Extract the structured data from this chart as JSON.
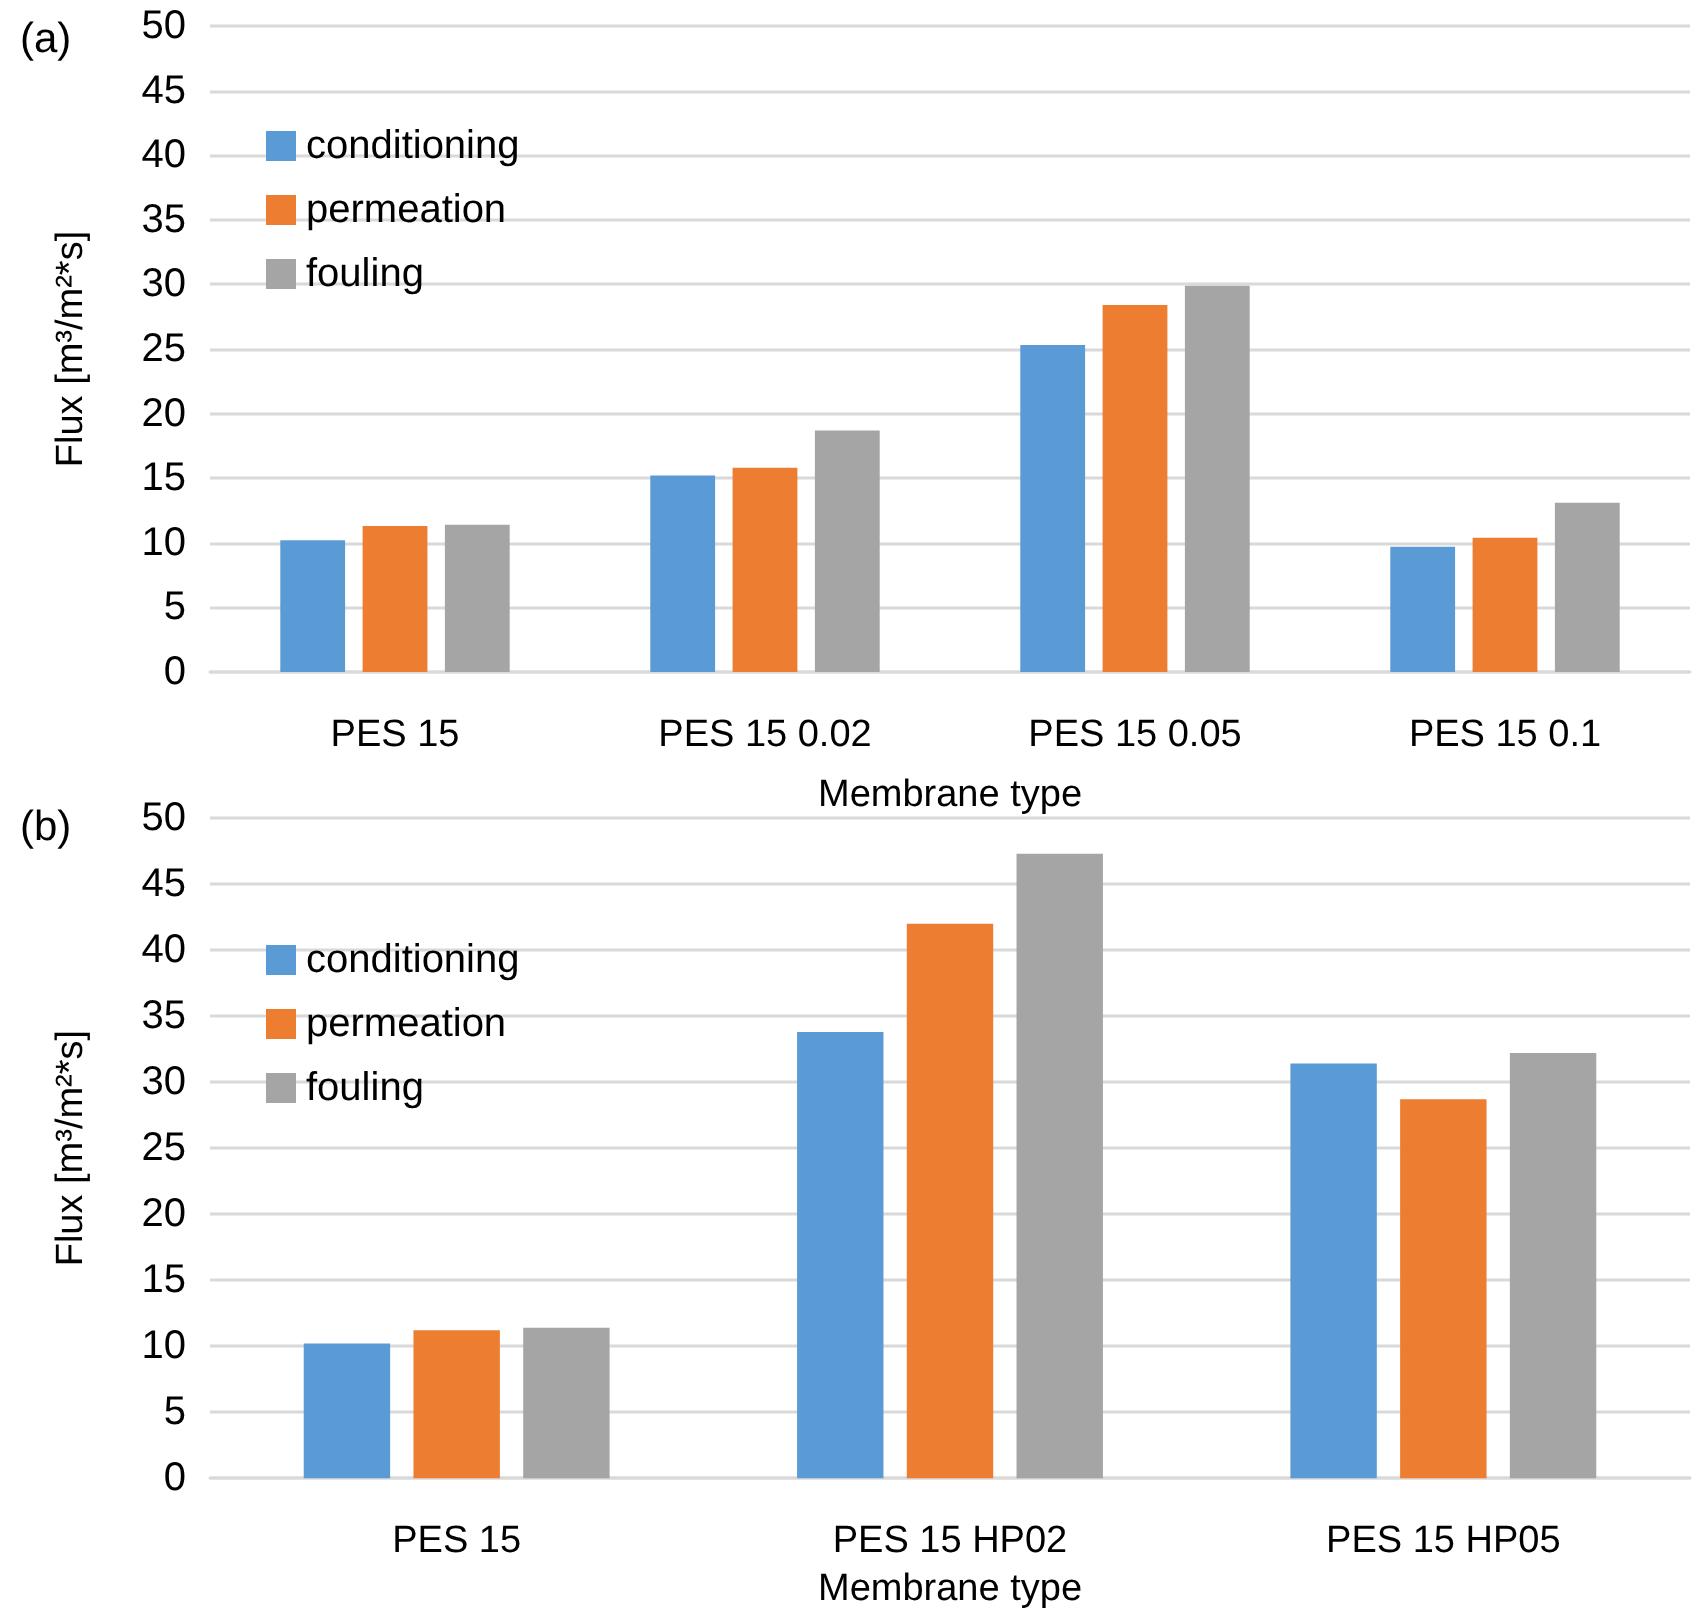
{
  "chart_data": [
    {
      "type": "bar",
      "annotations": [
        "(a)"
      ],
      "xlabel": "Membrane type",
      "ylabel": "Flux [m³/m²*s]",
      "categories": [
        "PES 15",
        "PES 15 0.02",
        "PES 15 0.05",
        "PES 15 0.1"
      ],
      "series": [
        {
          "name": "conditioning",
          "color": "#5b9bd5",
          "values": [
            10.2,
            15.2,
            25.3,
            9.7
          ]
        },
        {
          "name": "permeation",
          "color": "#ed7d31",
          "values": [
            11.3,
            15.8,
            28.4,
            10.4
          ]
        },
        {
          "name": "fouling",
          "color": "#a5a5a5",
          "values": [
            11.4,
            18.7,
            29.9,
            13.1
          ]
        }
      ],
      "ylim": [
        0,
        50
      ],
      "yticks": [
        0,
        5,
        10,
        15,
        20,
        25,
        30,
        35,
        40,
        45,
        50
      ],
      "grid": "y",
      "legend": "top left"
    },
    {
      "type": "bar",
      "annotations": [
        "(b)"
      ],
      "xlabel": "Membrane type",
      "ylabel": "Flux [m³/m²*s]",
      "categories": [
        "PES 15",
        "PES 15 HP02",
        "PES 15 HP05"
      ],
      "series": [
        {
          "name": "conditioning",
          "color": "#5b9bd5",
          "values": [
            10.2,
            33.8,
            31.4
          ]
        },
        {
          "name": "permeation",
          "color": "#ed7d31",
          "values": [
            11.2,
            42.0,
            28.7
          ]
        },
        {
          "name": "fouling",
          "color": "#a5a5a5",
          "values": [
            11.4,
            47.3,
            32.2
          ]
        }
      ],
      "ylim": [
        0,
        50
      ],
      "yticks": [
        0,
        5,
        10,
        15,
        20,
        25,
        30,
        35,
        40,
        45,
        50
      ],
      "grid": "y",
      "legend": "top left"
    }
  ]
}
